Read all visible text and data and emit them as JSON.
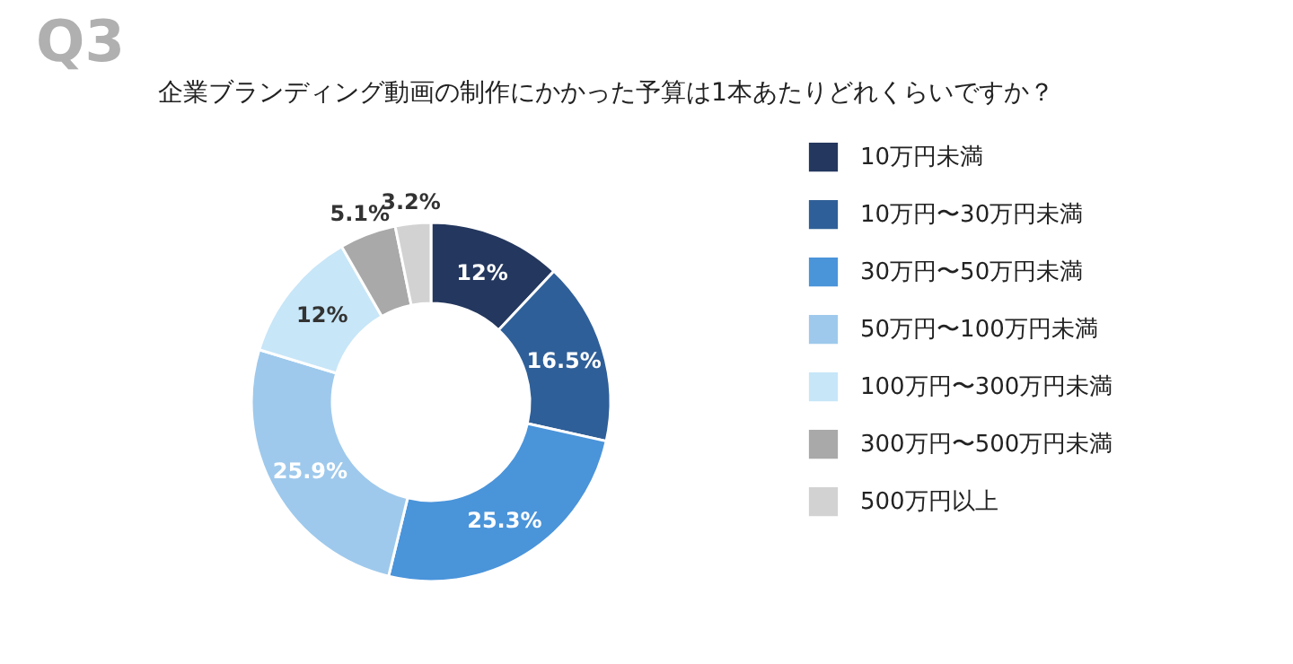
{
  "chart_data": {
    "type": "donut",
    "title": "Q3",
    "subtitle": "企業ブランディング動画の制作にかかった予算は1本あたりどれくらいですか？",
    "categories": [
      "10万円未満",
      "10万円〜30万円未満",
      "30万円〜50万円未満",
      "50万円〜100万円未満",
      "100万円〜300万円未満",
      "300万円〜500万円未満",
      "500万円以上"
    ],
    "values": [
      12,
      16.5,
      25.3,
      25.9,
      12,
      5.1,
      3.2
    ],
    "value_labels": [
      "12%",
      "16.5%",
      "25.3%",
      "25.9%",
      "12%",
      "5.1%",
      "3.2%"
    ],
    "colors": [
      "#24375e",
      "#2f5f98",
      "#4a94da",
      "#9ec9ec",
      "#c7e6f8",
      "#a9a9a9",
      "#d2d2d2"
    ],
    "legend": "right"
  }
}
